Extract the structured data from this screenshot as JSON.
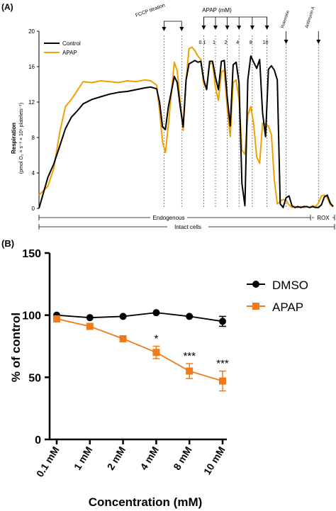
{
  "panel_a": {
    "label": "(A)",
    "ylabel_line1": "Respiration",
    "ylabel_line2": "(pmol O₂ × s⁻¹ × 10⁶ platelets⁻¹)",
    "legend": [
      {
        "label": "Control",
        "color": "#000000"
      },
      {
        "label": "APAP",
        "color": "#f0a000"
      }
    ],
    "annotations": {
      "fccp": "FCCP titration",
      "apap": "APAP (mM)",
      "conc_labels": [
        "0.1",
        "1",
        "2",
        "4",
        "8",
        "10"
      ],
      "rotenone": "Rotenone",
      "antimycin": "Antimycin A"
    },
    "brackets": {
      "endogenous": "Endogenous",
      "rox": "ROX",
      "intact": "Intact cells"
    }
  },
  "panel_b": {
    "label": "(B)"
  },
  "chart_data": [
    {
      "type": "line",
      "panel": "A",
      "xlabel": "",
      "ylabel": "Respiration (pmol O₂ × s⁻¹ × 10⁶ platelets⁻¹)",
      "ylim": [
        0,
        20
      ],
      "yticks": [
        0,
        4,
        8,
        12,
        16,
        20
      ],
      "xlim": [
        0,
        100
      ],
      "grid": false,
      "series": [
        {
          "name": "Control",
          "color": "#000000",
          "x": [
            0,
            3,
            5,
            7,
            9,
            11,
            13,
            15,
            18,
            21,
            24,
            27,
            30,
            33,
            36,
            38,
            40,
            41,
            42,
            43,
            44,
            46,
            47,
            48,
            49,
            50,
            51,
            52,
            53,
            54,
            55,
            56,
            57,
            58,
            59,
            60,
            61,
            62,
            63,
            64,
            65,
            66,
            67,
            68,
            69,
            70,
            71,
            72,
            73,
            74,
            75,
            76,
            77,
            78,
            79,
            80,
            81,
            82,
            83,
            84,
            85,
            86,
            87,
            88,
            89,
            90,
            91,
            92,
            93,
            94,
            95,
            96,
            97,
            98,
            99,
            100
          ],
          "values": [
            0,
            3.5,
            5,
            7,
            9,
            10.3,
            11,
            11.8,
            12.3,
            12.6,
            12.9,
            13.1,
            13.2,
            13.4,
            13.6,
            13.7,
            13.5,
            12,
            9.2,
            8.9,
            11.5,
            14.9,
            14.2,
            11.5,
            9.2,
            14.5,
            16.3,
            16.5,
            16.7,
            16.5,
            16.6,
            14.5,
            13.4,
            16.6,
            16.6,
            14.8,
            13.4,
            16.6,
            16.7,
            12.5,
            9.3,
            16.2,
            16.5,
            14.2,
            2.8,
            0.3,
            14.5,
            17.2,
            16.5,
            15.8,
            16.8,
            10.8,
            8.1,
            15.7,
            16.1,
            15.6,
            14.5,
            0.5,
            0.1,
            1.2,
            1.4,
            0.3,
            0.1,
            0.2,
            0.1,
            0.2,
            0.2,
            0.1,
            0.2,
            0.1,
            0.1,
            0.4,
            1.3,
            1.5,
            0.6,
            0.2
          ]
        },
        {
          "name": "APAP",
          "color": "#f0a000",
          "x": [
            0,
            3,
            5,
            7,
            9,
            11,
            13,
            15,
            18,
            21,
            24,
            27,
            30,
            33,
            36,
            38,
            40,
            41,
            42,
            43,
            44,
            46,
            47,
            48,
            49,
            50,
            51,
            52,
            53,
            54,
            55,
            56,
            57,
            58,
            59,
            60,
            61,
            62,
            63,
            64,
            65,
            66,
            67,
            68,
            69,
            70,
            71,
            72,
            73,
            74,
            75,
            76,
            77,
            78,
            79,
            80,
            81,
            82,
            83,
            84,
            85,
            86,
            87,
            88,
            89,
            90,
            91,
            92,
            93,
            94,
            95,
            96,
            97,
            98,
            99,
            100
          ],
          "values": [
            1.5,
            2.5,
            4.5,
            8.5,
            11.5,
            12.3,
            13.3,
            14.3,
            14.2,
            14.4,
            14.3,
            14.2,
            14.4,
            14.3,
            14.5,
            14.4,
            13.9,
            11,
            7.5,
            6.3,
            9.5,
            16.5,
            15.5,
            12,
            8.8,
            14.5,
            18,
            18.2,
            17.8,
            17.2,
            16.8,
            14,
            13.6,
            16.3,
            16.4,
            13.6,
            12.2,
            15.4,
            15.6,
            11.2,
            8.1,
            14.2,
            14.5,
            12.3,
            6.6,
            6.1,
            10.5,
            11.5,
            9.5,
            5.8,
            5.1,
            9.6,
            9.5,
            9.3,
            8.3,
            3.2,
            0.5,
            0.8,
            1.0,
            0.9,
            0.4,
            0.1,
            0.2,
            0.1,
            0.2,
            0.1,
            0.2,
            0.1,
            0.3,
            0.2,
            0.6,
            1.4,
            1.5,
            1.2,
            0.4,
            0.2
          ]
        }
      ],
      "event_markers": [
        {
          "label": "FCCP titration",
          "x": [
            42.5,
            48.5
          ]
        },
        {
          "label": "0.1",
          "x": 56
        },
        {
          "label": "1",
          "x": 60
        },
        {
          "label": "2",
          "x": 64
        },
        {
          "label": "4",
          "x": 68
        },
        {
          "label": "8",
          "x": 72.5
        },
        {
          "label": "10",
          "x": 77.5
        },
        {
          "label": "Rotenone",
          "x": 84
        },
        {
          "label": "Antimycin A",
          "x": 95
        }
      ]
    },
    {
      "type": "line",
      "panel": "B",
      "categories": [
        "0.1 mM",
        "1 mM",
        "2 mM",
        "4 mM",
        "8 mM",
        "10 mM"
      ],
      "xlabel": "Concentration (mM)",
      "ylabel": "% of control",
      "ylim": [
        0,
        150
      ],
      "yticks": [
        0,
        50,
        100,
        150
      ],
      "legend_position": "top-right",
      "grid": false,
      "series": [
        {
          "name": "DMSO",
          "color": "#000000",
          "marker": "circle",
          "values": [
            100,
            98,
            99,
            102,
            99,
            95
          ],
          "errors": [
            0,
            0,
            0,
            0,
            0,
            4
          ]
        },
        {
          "name": "APAP",
          "color": "#f07a1a",
          "marker": "square",
          "values": [
            97,
            91,
            81,
            70,
            55,
            47
          ],
          "errors": [
            0,
            0,
            0,
            5,
            6,
            8
          ]
        }
      ],
      "annotations": [
        "",
        "",
        "",
        "*",
        "***",
        "***"
      ]
    }
  ]
}
